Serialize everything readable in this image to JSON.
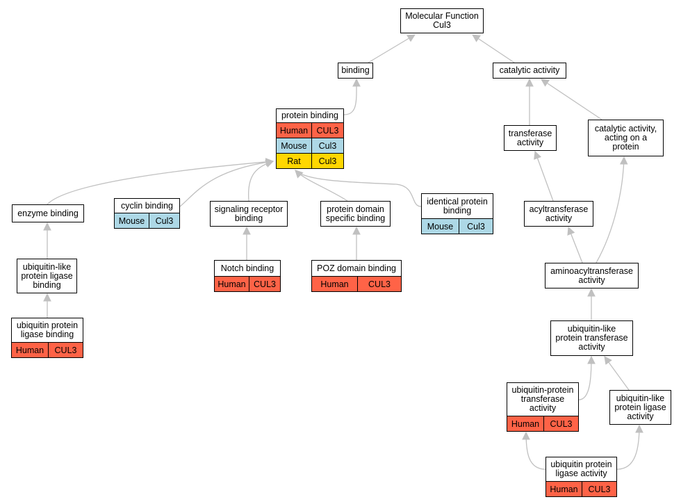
{
  "colors": {
    "Human": "#ff6347",
    "Mouse": "#add8e6",
    "Rat": "#ffd700",
    "edge": "#c0c0c0"
  },
  "nodes": [
    {
      "id": "mf",
      "label": "Molecular Function\nCul3",
      "rows": []
    },
    {
      "id": "binding",
      "label": "binding",
      "rows": []
    },
    {
      "id": "catalytic",
      "label": "catalytic activity",
      "rows": []
    },
    {
      "id": "protein_binding",
      "label": "protein binding",
      "rows": [
        {
          "species": "Human",
          "gene": "CUL3"
        },
        {
          "species": "Mouse",
          "gene": "Cul3"
        },
        {
          "species": "Rat",
          "gene": "Cul3"
        }
      ]
    },
    {
      "id": "transferase",
      "label": "transferase\nactivity",
      "rows": []
    },
    {
      "id": "cat_protein",
      "label": "catalytic activity,\nacting on a\nprotein",
      "rows": []
    },
    {
      "id": "enzyme",
      "label": "enzyme binding",
      "rows": []
    },
    {
      "id": "cyclin",
      "label": "cyclin binding",
      "rows": [
        {
          "species": "Mouse",
          "gene": "Cul3"
        }
      ]
    },
    {
      "id": "signaling",
      "label": "signaling receptor\nbinding",
      "rows": []
    },
    {
      "id": "domain",
      "label": "protein domain\nspecific binding",
      "rows": []
    },
    {
      "id": "identical",
      "label": "identical protein\nbinding",
      "rows": [
        {
          "species": "Mouse",
          "gene": "Cul3"
        }
      ]
    },
    {
      "id": "acyl",
      "label": "acyltransferase\nactivity",
      "rows": []
    },
    {
      "id": "ubl_lig_binding",
      "label": "ubiquitin-like\nprotein ligase\nbinding",
      "rows": []
    },
    {
      "id": "notch",
      "label": "Notch binding",
      "rows": [
        {
          "species": "Human",
          "gene": "CUL3"
        }
      ]
    },
    {
      "id": "poz",
      "label": "POZ domain binding",
      "rows": [
        {
          "species": "Human",
          "gene": "CUL3"
        }
      ]
    },
    {
      "id": "aminoacyl",
      "label": "aminoacyltransferase\nactivity",
      "rows": []
    },
    {
      "id": "ub_lig_binding",
      "label": "ubiquitin protein\nligase binding",
      "rows": [
        {
          "species": "Human",
          "gene": "CUL3"
        }
      ]
    },
    {
      "id": "ubl_transferase",
      "label": "ubiquitin-like\nprotein transferase\nactivity",
      "rows": []
    },
    {
      "id": "ub_transferase",
      "label": "ubiquitin-protein\ntransferase\nactivity",
      "rows": [
        {
          "species": "Human",
          "gene": "CUL3"
        }
      ]
    },
    {
      "id": "ubl_ligase",
      "label": "ubiquitin-like\nprotein ligase\nactivity",
      "rows": []
    },
    {
      "id": "ub_ligase",
      "label": "ubiquitin protein\nligase activity",
      "rows": [
        {
          "species": "Human",
          "gene": "CUL3"
        }
      ]
    }
  ],
  "edges": [
    [
      "binding",
      "mf"
    ],
    [
      "catalytic",
      "mf"
    ],
    [
      "protein_binding",
      "binding"
    ],
    [
      "transferase",
      "catalytic"
    ],
    [
      "cat_protein",
      "catalytic"
    ],
    [
      "enzyme",
      "protein_binding"
    ],
    [
      "cyclin",
      "protein_binding"
    ],
    [
      "signaling",
      "protein_binding"
    ],
    [
      "domain",
      "protein_binding"
    ],
    [
      "identical",
      "protein_binding"
    ],
    [
      "acyl",
      "transferase"
    ],
    [
      "aminoacyl",
      "acyl"
    ],
    [
      "aminoacyl",
      "cat_protein"
    ],
    [
      "ubl_lig_binding",
      "enzyme"
    ],
    [
      "ub_lig_binding",
      "ubl_lig_binding"
    ],
    [
      "notch",
      "signaling"
    ],
    [
      "poz",
      "domain"
    ],
    [
      "ubl_transferase",
      "aminoacyl"
    ],
    [
      "ub_transferase",
      "ubl_transferase"
    ],
    [
      "ubl_ligase",
      "ubl_transferase"
    ],
    [
      "ub_ligase",
      "ub_transferase"
    ],
    [
      "ub_ligase",
      "ubl_ligase"
    ]
  ]
}
